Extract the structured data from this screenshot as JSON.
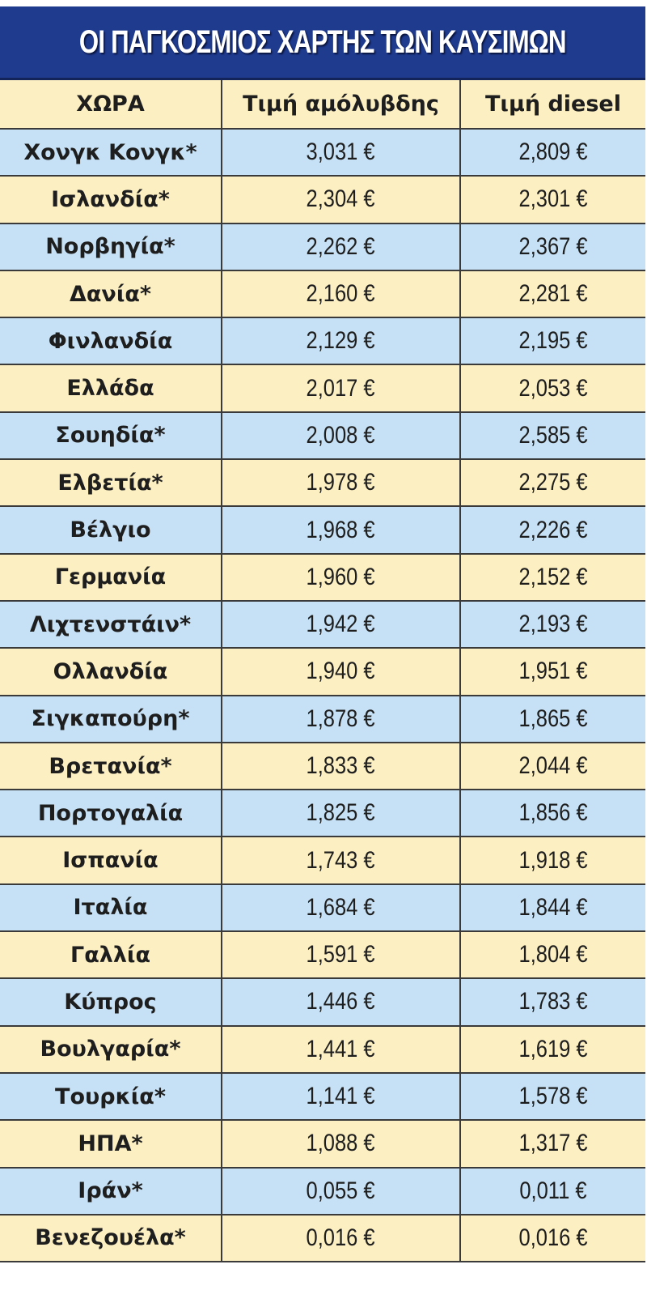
{
  "title": "ΟΙ ΠΑΓΚΟΣΜΙΟΣ ΧΑΡΤΗΣ ΤΩΝ ΚΑΥΣΙΜΩΝ",
  "colors": {
    "title_bg": "#1f3b8e",
    "row_yellow": "#fcefc2",
    "row_blue": "#c6e1f5"
  },
  "columns": [
    "ΧΩΡΑ",
    "Τιμή αμόλυβδης",
    "Τιμή diesel"
  ],
  "rows": [
    [
      "Χονγκ Κονγκ*",
      "3,031 €",
      "2,809 €"
    ],
    [
      "Ισλανδία*",
      "2,304 €",
      "2,301 €"
    ],
    [
      "Νορβηγία*",
      "2,262 €",
      "2,367 €"
    ],
    [
      "Δανία*",
      "2,160 €",
      "2,281 €"
    ],
    [
      "Φινλανδία",
      "2,129 €",
      "2,195 €"
    ],
    [
      "Ελλάδα",
      "2,017 €",
      "2,053 €"
    ],
    [
      "Σουηδία*",
      "2,008 €",
      "2,585 €"
    ],
    [
      "Ελβετία*",
      "1,978 €",
      "2,275 €"
    ],
    [
      "Βέλγιο",
      "1,968 €",
      "2,226 €"
    ],
    [
      "Γερμανία",
      "1,960 €",
      "2,152 €"
    ],
    [
      "Λιχτενστάιν*",
      "1,942 €",
      "2,193 €"
    ],
    [
      "Ολλανδία",
      "1,940 €",
      "1,951 €"
    ],
    [
      "Σιγκαπούρη*",
      "1,878 €",
      "1,865 €"
    ],
    [
      "Βρετανία*",
      "1,833 €",
      "2,044 €"
    ],
    [
      "Πορτογαλία",
      "1,825 €",
      "1,856 €"
    ],
    [
      "Ισπανία",
      "1,743 €",
      "1,918 €"
    ],
    [
      "Ιταλία",
      "1,684 €",
      "1,844 €"
    ],
    [
      "Γαλλία",
      "1,591 €",
      "1,804 €"
    ],
    [
      "Κύπρος",
      "1,446 €",
      "1,783 €"
    ],
    [
      "Βουλγαρία*",
      "1,441 €",
      "1,619 €"
    ],
    [
      "Τουρκία*",
      "1,141 €",
      "1,578 €"
    ],
    [
      "ΗΠΑ*",
      "1,088 €",
      "1,317 €"
    ],
    [
      "Ιράν*",
      "0,055 €",
      "0,011 €"
    ],
    [
      "Βενεζουέλα*",
      "0,016 €",
      "0,016 €"
    ]
  ]
}
